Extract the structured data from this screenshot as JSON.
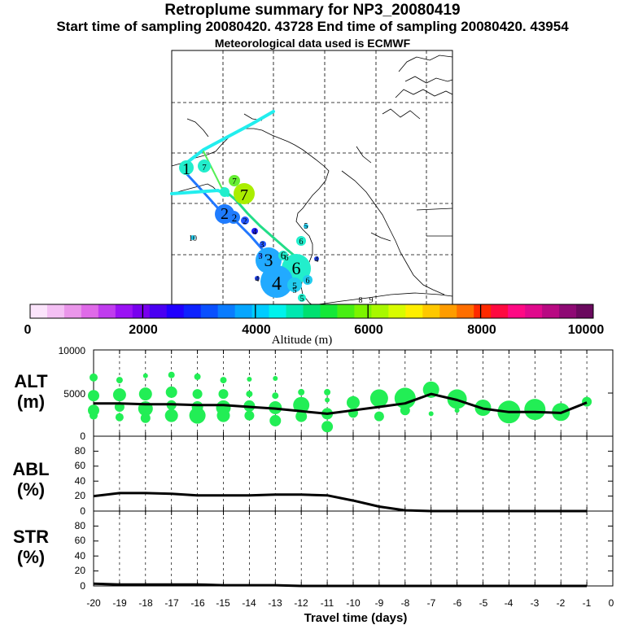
{
  "header": {
    "title": "Retroplume summary for NP3_20080419",
    "sampling": "Start time of sampling 20080420. 43728     End time of sampling 20080420. 43954",
    "met": "Meteorological data used is ECMWF"
  },
  "colors": {
    "marker": "#22ee55",
    "line": "#000000",
    "colorbar": [
      "#fbe4fb",
      "#f4c0f4",
      "#ea96ea",
      "#df6ae8",
      "#c03cee",
      "#9a12f4",
      "#7800ee",
      "#4a00f2",
      "#2000ff",
      "#0e22ff",
      "#0a50ff",
      "#0a7cff",
      "#06a6ff",
      "#00ccff",
      "#00f2ec",
      "#00e8b0",
      "#00e070",
      "#14e838",
      "#48ee14",
      "#7cf400",
      "#a8f800",
      "#d8fc00",
      "#ffee00",
      "#ffc800",
      "#ff9c00",
      "#ff6e00",
      "#ff2a00",
      "#ff0a40",
      "#ff0a84",
      "#e00a8c",
      "#b80a82",
      "#8e0a74",
      "#6a0a5e"
    ]
  },
  "map": {
    "labels": [
      "1",
      "7",
      "7",
      "7",
      "2",
      "2",
      "2",
      "3",
      "6",
      "3",
      "6",
      "4",
      "5",
      "6",
      "4",
      "4",
      "5",
      "6",
      "5",
      "3",
      "4",
      "5",
      "6",
      "10",
      "8",
      "9"
    ]
  },
  "colorbar": {
    "ticks": [
      "0",
      "2000",
      "4000",
      "6000",
      "8000",
      "10000"
    ],
    "label": "Altitude (m)"
  },
  "panels": {
    "alt": {
      "label": [
        "ALT",
        "(m)"
      ],
      "yticks": [
        "10000",
        "5000",
        "0"
      ]
    },
    "abl": {
      "label": [
        "ABL",
        "(%)"
      ],
      "yticks": [
        "80",
        "60",
        "40",
        "20",
        "0"
      ]
    },
    "str": {
      "label": [
        "STR",
        "(%)"
      ],
      "yticks": [
        "80",
        "60",
        "40",
        "20",
        "0"
      ]
    }
  },
  "xaxis": {
    "label": "Travel time (days)",
    "ticks": [
      "-20",
      "-19",
      "-18",
      "-17",
      "-16",
      "-15",
      "-14",
      "-13",
      "-12",
      "-11",
      "-10",
      "-9",
      "-8",
      "-7",
      "-6",
      "-5",
      "-4",
      "-3",
      "-2",
      "-1",
      "0"
    ]
  },
  "chart_data": [
    {
      "type": "line",
      "title": "ALT (m)",
      "xlabel": "Travel time (days)",
      "ylabel": "ALT (m)",
      "x": [
        -20,
        -19,
        -18,
        -17,
        -16,
        -15,
        -14,
        -13,
        -12,
        -11,
        -10,
        -9,
        -8,
        -7,
        -6,
        -5,
        -4,
        -3,
        -2,
        -1
      ],
      "values": [
        3800,
        3800,
        3700,
        3700,
        3600,
        3600,
        3400,
        3200,
        2900,
        2600,
        3000,
        3400,
        3800,
        4900,
        4200,
        3200,
        2800,
        2800,
        2700,
        3900
      ],
      "ylim": [
        0,
        10000
      ],
      "markers": [
        [
          -20,
          6800,
          5
        ],
        [
          -20,
          4700,
          7
        ],
        [
          -20,
          3000,
          7
        ],
        [
          -20,
          2400,
          5
        ],
        [
          -19,
          6500,
          4
        ],
        [
          -19,
          4800,
          8
        ],
        [
          -19,
          3400,
          6
        ],
        [
          -19,
          2200,
          5
        ],
        [
          -18,
          7000,
          3
        ],
        [
          -18,
          4900,
          8
        ],
        [
          -18,
          3200,
          9
        ],
        [
          -18,
          2100,
          6
        ],
        [
          -17,
          7100,
          4
        ],
        [
          -17,
          5100,
          7
        ],
        [
          -17,
          3600,
          6
        ],
        [
          -17,
          2400,
          8
        ],
        [
          -16,
          6900,
          4
        ],
        [
          -16,
          4900,
          6
        ],
        [
          -16,
          3400,
          7
        ],
        [
          -16,
          2400,
          10
        ],
        [
          -15,
          6500,
          4
        ],
        [
          -15,
          4900,
          6
        ],
        [
          -15,
          3300,
          9
        ],
        [
          -15,
          2400,
          8
        ],
        [
          -14,
          6600,
          3
        ],
        [
          -14,
          4900,
          4
        ],
        [
          -14,
          3500,
          7
        ],
        [
          -14,
          2400,
          6
        ],
        [
          -13,
          6700,
          3
        ],
        [
          -13,
          4700,
          4
        ],
        [
          -13,
          3300,
          8
        ],
        [
          -13,
          1800,
          7
        ],
        [
          -12,
          5100,
          4
        ],
        [
          -12,
          3600,
          10
        ],
        [
          -12,
          2300,
          7
        ],
        [
          -11,
          5100,
          4
        ],
        [
          -11,
          4200,
          3
        ],
        [
          -11,
          2600,
          7
        ],
        [
          -11,
          1100,
          7
        ],
        [
          -10,
          3900,
          8
        ],
        [
          -10,
          2700,
          6
        ],
        [
          -9,
          4400,
          11
        ],
        [
          -9,
          2300,
          6
        ],
        [
          -8,
          4400,
          13
        ],
        [
          -8,
          3000,
          6
        ],
        [
          -7,
          5400,
          10
        ],
        [
          -7,
          2600,
          3
        ],
        [
          -6,
          4300,
          12
        ],
        [
          -6,
          3000,
          3
        ],
        [
          -5,
          3300,
          10
        ],
        [
          -4,
          2800,
          14
        ],
        [
          -3,
          3100,
          13
        ],
        [
          -2,
          2800,
          11
        ],
        [
          -1,
          4000,
          6
        ]
      ]
    },
    {
      "type": "line",
      "title": "ABL (%)",
      "xlabel": "Travel time (days)",
      "ylabel": "ABL (%)",
      "x": [
        -20,
        -19,
        -18,
        -17,
        -16,
        -15,
        -14,
        -13,
        -12,
        -11,
        -10,
        -9,
        -8,
        -7,
        -6,
        -5,
        -4,
        -3,
        -2,
        -1
      ],
      "values": [
        20,
        24,
        24,
        23,
        21,
        21,
        21,
        22,
        22,
        21,
        14,
        6,
        1,
        0,
        0,
        0,
        0,
        0,
        0,
        0
      ],
      "ylim": [
        0,
        100
      ]
    },
    {
      "type": "line",
      "title": "STR (%)",
      "xlabel": "Travel time (days)",
      "ylabel": "STR (%)",
      "x": [
        -20,
        -19,
        -18,
        -17,
        -16,
        -15,
        -14,
        -13,
        -12,
        -11,
        -10,
        -9,
        -8,
        -7,
        -6,
        -5,
        -4,
        -3,
        -2,
        -1
      ],
      "values": [
        3,
        2,
        2,
        2,
        2,
        1,
        1,
        1,
        0,
        0,
        0,
        0,
        0,
        0,
        0,
        0,
        0,
        0,
        0,
        0
      ],
      "ylim": [
        0,
        100
      ]
    }
  ]
}
